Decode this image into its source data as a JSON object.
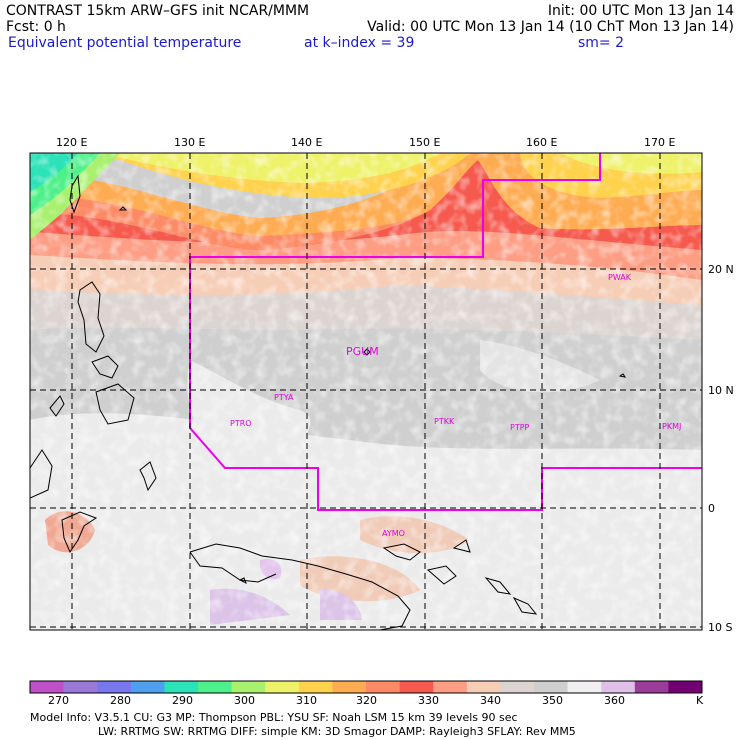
{
  "header": {
    "line1_left": "CONTRAST 15km ARW–GFS init   NCAR/MMM",
    "line1_right": "Init: 00 UTC Mon 13 Jan 14",
    "line2_fcst": "Fcst:     0 h",
    "line2_valid": "Valid: 00 UTC Mon 13 Jan 14 (10 ChT Mon 13 Jan 14)",
    "line3_field": "Equivalent potential temperature",
    "line3_kindex": "at k–index =  39",
    "line3_sm": "sm= 2"
  },
  "axes": {
    "lon_labels": [
      "120 E",
      "130 E",
      "140 E",
      "150 E",
      "160 E",
      "170 E"
    ],
    "lat_labels": [
      "20 N",
      "10 N",
      "0",
      "10 S"
    ]
  },
  "stations": [
    {
      "label": "PWAK"
    },
    {
      "label": "PGUM"
    },
    {
      "label": "PTYA"
    },
    {
      "label": "PTRO"
    },
    {
      "label": "PTKK"
    },
    {
      "label": "PTPP"
    },
    {
      "label": "PKMJ"
    },
    {
      "label": "AYMO"
    }
  ],
  "colorbar": {
    "unit": "K",
    "ticks": [
      "270",
      "280",
      "290",
      "300",
      "310",
      "320",
      "330",
      "340",
      "350",
      "360"
    ],
    "colors": [
      "#c050c8",
      "#9a78d8",
      "#7878ee",
      "#4ea0ee",
      "#2ce2b8",
      "#4ef08a",
      "#a8f06e",
      "#eef26a",
      "#fed24c",
      "#feac52",
      "#fc8a64",
      "#f65a4e",
      "#fc9d84",
      "#f6cdb6",
      "#dcd4d0",
      "#cfcfcf",
      "#f0eef0",
      "#e0c0e8",
      "#9a3c9a",
      "#720072"
    ]
  },
  "footer": {
    "line1": "Model Info: V3.5.1    CU: G3      MP: Thompson     PBL: YSU      SF: Noah LSM     15 km    39 levels    90 sec",
    "line2": "LW: RRTMG     SW: RRTMG   DIFF: simple KM: 3D Smagor DAMP: Rayleigh3   SFLAY: Rev MM5"
  }
}
